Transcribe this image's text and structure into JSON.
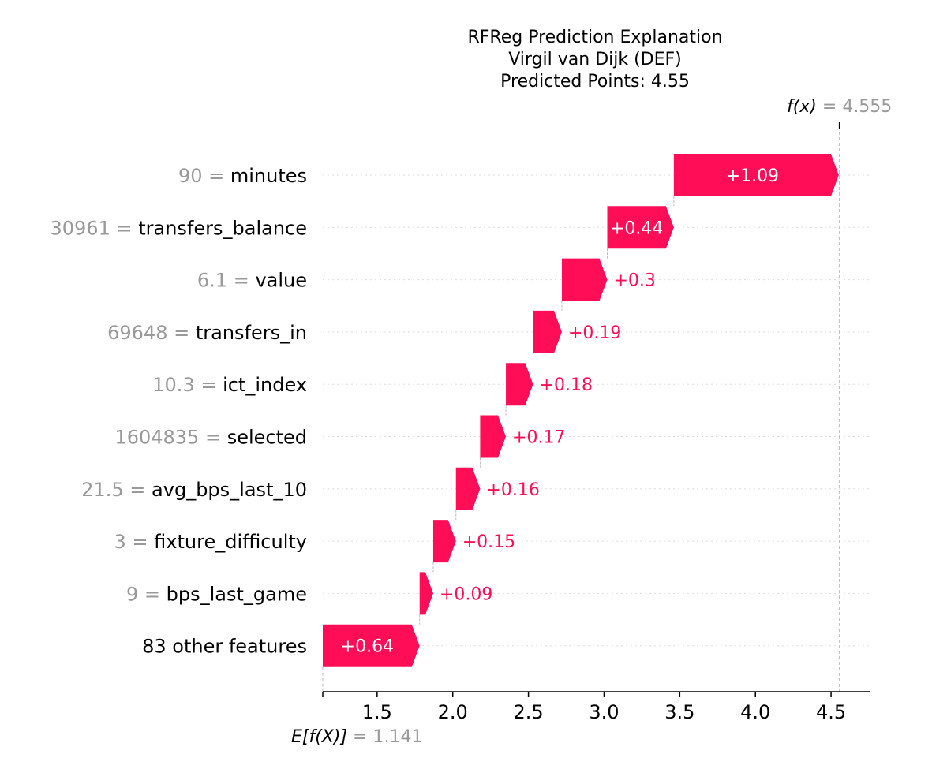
{
  "chart_data": {
    "type": "waterfall",
    "title_lines": [
      "RFReg Prediction Explanation",
      "Virgil van Dijk (DEF)",
      "Predicted Points: 4.55"
    ],
    "base_value": 1.141,
    "base_label_prefix": "E[f(X)]",
    "base_label_value": "= 1.141",
    "output_value": 4.555,
    "output_label_prefix": "f(x)",
    "output_label_value": "= 4.555",
    "x_ticks": [
      1.5,
      2.0,
      2.5,
      3.0,
      3.5,
      4.0,
      4.5
    ],
    "x_tick_labels": [
      "1.5",
      "2.0",
      "2.5",
      "3.0",
      "3.5",
      "4.0",
      "4.5"
    ],
    "xlim": [
      1.141,
      4.75
    ],
    "positive_color": "#ff0d57",
    "features": [
      {
        "value": "90",
        "name": "minutes",
        "contribution": 1.09,
        "label": "+1.09"
      },
      {
        "value": "30961",
        "name": "transfers_balance",
        "contribution": 0.44,
        "label": "+0.44"
      },
      {
        "value": "6.1",
        "name": "value",
        "contribution": 0.3,
        "label": "+0.3"
      },
      {
        "value": "69648",
        "name": "transfers_in",
        "contribution": 0.19,
        "label": "+0.19"
      },
      {
        "value": "10.3",
        "name": "ict_index",
        "contribution": 0.18,
        "label": "+0.18"
      },
      {
        "value": "1604835",
        "name": "selected",
        "contribution": 0.17,
        "label": "+0.17"
      },
      {
        "value": "21.5",
        "name": "avg_bps_last_10",
        "contribution": 0.16,
        "label": "+0.16"
      },
      {
        "value": "3",
        "name": "fixture_difficulty",
        "contribution": 0.15,
        "label": "+0.15"
      },
      {
        "value": "9",
        "name": "bps_last_game",
        "contribution": 0.09,
        "label": "+0.09"
      },
      {
        "value": "",
        "name": "83 other features",
        "contribution": 0.64,
        "label": "+0.64"
      }
    ]
  }
}
